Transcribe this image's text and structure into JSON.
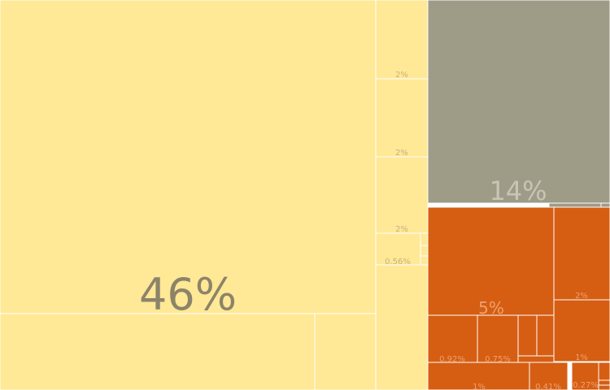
{
  "chart_data": {
    "type": "treemap",
    "title": "",
    "colors": {
      "yellow": "#FFE896",
      "gray": "#9E9B87",
      "orange": "#D55E12",
      "label_yellow": "#8C8469",
      "label_small_yellow": "#C9B27A",
      "label_gray": "#C8C5B5",
      "label_orange": "#F0A070"
    },
    "tiles": [
      {
        "group": "yellow",
        "value": 46,
        "label": "46%"
      },
      {
        "group": "yellow",
        "value": 5.2,
        "label": ""
      },
      {
        "group": "yellow",
        "value": 2.3,
        "label": ""
      },
      {
        "group": "yellow",
        "value": 2,
        "label": "2%"
      },
      {
        "group": "yellow",
        "value": 2,
        "label": "2%"
      },
      {
        "group": "yellow",
        "value": 2,
        "label": "2%"
      },
      {
        "group": "yellow",
        "value": 0.56,
        "label": "0.56%"
      },
      {
        "group": "yellow",
        "value": 0.15,
        "label": ""
      },
      {
        "group": "yellow",
        "value": 0.1,
        "label": ""
      },
      {
        "group": "yellow",
        "value": 0.08,
        "label": ""
      },
      {
        "group": "yellow",
        "value": 3.1,
        "label": ""
      },
      {
        "group": "gray",
        "value": 14,
        "label": "14%"
      },
      {
        "group": "gray",
        "value": 0.2,
        "label": ""
      },
      {
        "group": "gray",
        "value": 0.1,
        "label": ""
      },
      {
        "group": "orange",
        "value": 5,
        "label": "5%"
      },
      {
        "group": "orange",
        "value": 2,
        "label": "2%"
      },
      {
        "group": "orange",
        "value": 1,
        "label": "1%"
      },
      {
        "group": "orange",
        "value": 0.92,
        "label": "0.92%"
      },
      {
        "group": "orange",
        "value": 0.75,
        "label": "0.75%"
      },
      {
        "group": "orange",
        "value": 0.3,
        "label": ""
      },
      {
        "group": "orange",
        "value": 0.3,
        "label": ""
      },
      {
        "group": "orange",
        "value": 0.1,
        "label": ""
      },
      {
        "group": "orange",
        "value": 1,
        "label": "1%"
      },
      {
        "group": "orange",
        "value": 0.41,
        "label": "0.41%"
      },
      {
        "group": "orange",
        "value": 0.27,
        "label": "0.27%"
      },
      {
        "group": "orange",
        "value": 0.05,
        "label": ""
      },
      {
        "group": "orange",
        "value": 0.05,
        "label": ""
      },
      {
        "group": "orange",
        "value": 0.03,
        "label": ""
      }
    ]
  }
}
